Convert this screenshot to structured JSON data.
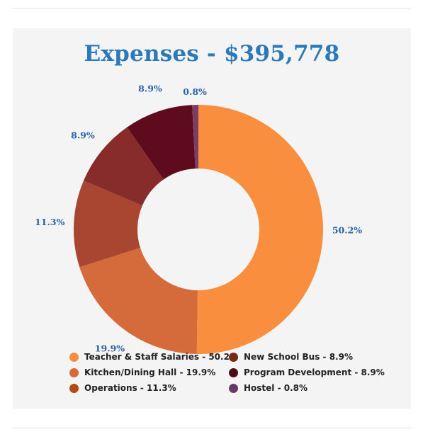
{
  "chart_data": {
    "type": "pie",
    "variant": "donut",
    "title": "Expenses - $395,778",
    "slices": [
      {
        "label": "Teacher & Staff Salaries",
        "value": 50.2,
        "display": "50.2%",
        "color": "#f98e3f",
        "legend": "Teacher & Staff Salaries - 50.2%"
      },
      {
        "label": "Kitchen/Dining Hall",
        "value": 19.9,
        "display": "19.9%",
        "color": "#d56b3a",
        "legend": "Kitchen/Dining Hall - 19.9%"
      },
      {
        "label": "Operations",
        "value": 11.3,
        "display": "11.3%",
        "color": "#a84631",
        "legend": "Operations - 11.3%"
      },
      {
        "label": "New School Bus",
        "value": 8.9,
        "display": "8.9%",
        "color": "#882b2b",
        "legend": "New School Bus - 8.9%"
      },
      {
        "label": "Program Development",
        "value": 8.9,
        "display": "8.9%",
        "color": "#5e0b1e",
        "legend": "Program Development - 8.9%"
      },
      {
        "label": "Hostel",
        "value": 0.8,
        "display": "0.8%",
        "color": "#7c3d64",
        "legend": "Hostel - 0.8%"
      }
    ],
    "legend_position": "bottom",
    "legend_marker_colors": [
      "#f98e3f",
      "#d56b3a",
      "#b04c14",
      "#7a2a12",
      "#4a0f15",
      "#6a3a67"
    ]
  }
}
